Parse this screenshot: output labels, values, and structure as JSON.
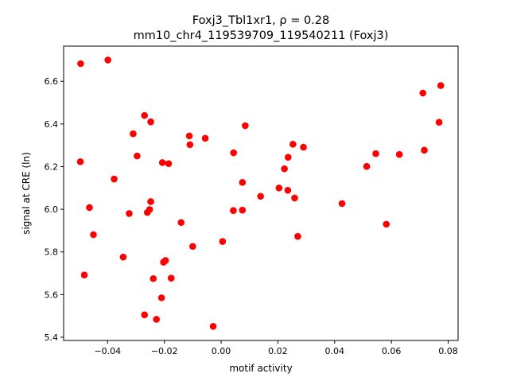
{
  "chart_data": {
    "type": "scatter",
    "title_line1": "Foxj3_Tbl1xr1, ρ = 0.28",
    "title_line2": "mm10_chr4_119539709_119540211 (Foxj3)",
    "xlabel": "motif activity",
    "ylabel": "signal at CRE (ln)",
    "xlim": [
      -0.0555,
      0.0835
    ],
    "ylim": [
      5.385,
      6.765
    ],
    "xticks": [
      -0.04,
      -0.02,
      0.0,
      0.02,
      0.04,
      0.06,
      0.08
    ],
    "xtick_labels": [
      "−0.04",
      "−0.02",
      "0.00",
      "0.02",
      "0.04",
      "0.06",
      "0.08"
    ],
    "yticks": [
      5.4,
      5.6,
      5.8,
      6.0,
      6.2,
      6.4,
      6.6
    ],
    "ytick_labels": [
      "5.4",
      "5.6",
      "5.8",
      "6.0",
      "6.2",
      "6.4",
      "6.6"
    ],
    "grid": false,
    "legend": "none",
    "marker_color": "#ff0000",
    "points": [
      {
        "x": -0.0495,
        "y": 6.683
      },
      {
        "x": -0.0399,
        "y": 6.7
      },
      {
        "x": -0.0496,
        "y": 6.223
      },
      {
        "x": -0.0464,
        "y": 6.008
      },
      {
        "x": -0.045,
        "y": 5.881
      },
      {
        "x": -0.0482,
        "y": 5.692
      },
      {
        "x": -0.0377,
        "y": 6.142
      },
      {
        "x": -0.0345,
        "y": 5.776
      },
      {
        "x": -0.0324,
        "y": 5.98
      },
      {
        "x": -0.031,
        "y": 6.354
      },
      {
        "x": -0.0296,
        "y": 6.25
      },
      {
        "x": -0.027,
        "y": 6.44
      },
      {
        "x": -0.0248,
        "y": 6.41
      },
      {
        "x": -0.026,
        "y": 5.985
      },
      {
        "x": -0.0252,
        "y": 5.999
      },
      {
        "x": -0.0248,
        "y": 6.036
      },
      {
        "x": -0.0239,
        "y": 5.675
      },
      {
        "x": -0.0228,
        "y": 5.484
      },
      {
        "x": -0.027,
        "y": 5.505
      },
      {
        "x": -0.0207,
        "y": 6.219
      },
      {
        "x": -0.0185,
        "y": 6.214
      },
      {
        "x": -0.0203,
        "y": 5.752
      },
      {
        "x": -0.0196,
        "y": 5.76
      },
      {
        "x": -0.0176,
        "y": 5.677
      },
      {
        "x": -0.021,
        "y": 5.585
      },
      {
        "x": -0.0141,
        "y": 5.938
      },
      {
        "x": -0.0112,
        "y": 6.344
      },
      {
        "x": -0.011,
        "y": 6.303
      },
      {
        "x": -0.01,
        "y": 5.826
      },
      {
        "x": -0.0056,
        "y": 6.333
      },
      {
        "x": -0.0028,
        "y": 5.451
      },
      {
        "x": 0.0005,
        "y": 5.849
      },
      {
        "x": 0.0044,
        "y": 6.265
      },
      {
        "x": 0.0043,
        "y": 5.994
      },
      {
        "x": 0.0075,
        "y": 6.126
      },
      {
        "x": 0.0075,
        "y": 5.996
      },
      {
        "x": 0.0085,
        "y": 6.392
      },
      {
        "x": 0.0139,
        "y": 6.061
      },
      {
        "x": 0.0204,
        "y": 6.1
      },
      {
        "x": 0.0223,
        "y": 6.19
      },
      {
        "x": 0.0235,
        "y": 6.089
      },
      {
        "x": 0.0236,
        "y": 6.244
      },
      {
        "x": 0.0253,
        "y": 6.305
      },
      {
        "x": 0.0259,
        "y": 6.053
      },
      {
        "x": 0.027,
        "y": 5.873
      },
      {
        "x": 0.029,
        "y": 6.291
      },
      {
        "x": 0.0426,
        "y": 6.027
      },
      {
        "x": 0.0513,
        "y": 6.201
      },
      {
        "x": 0.0545,
        "y": 6.261
      },
      {
        "x": 0.0582,
        "y": 5.93
      },
      {
        "x": 0.0628,
        "y": 6.257
      },
      {
        "x": 0.0711,
        "y": 6.545
      },
      {
        "x": 0.0716,
        "y": 6.277
      },
      {
        "x": 0.0768,
        "y": 6.408
      },
      {
        "x": 0.0774,
        "y": 6.58
      }
    ]
  }
}
